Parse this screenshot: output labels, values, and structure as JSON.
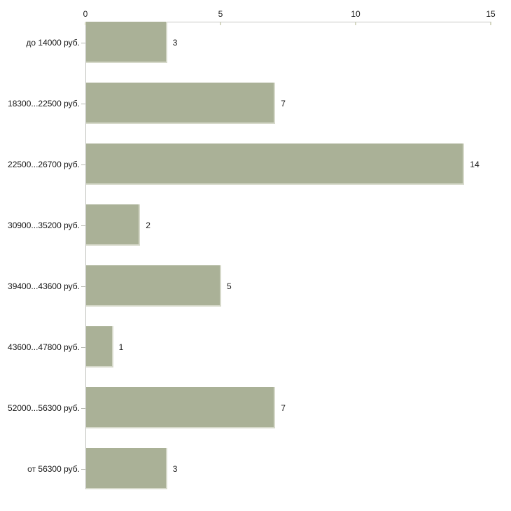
{
  "chart_data": {
    "type": "bar",
    "orientation": "horizontal",
    "title": "",
    "xlabel": "",
    "ylabel": "",
    "categories": [
      "до 14000 руб.",
      "18300...22500 руб.",
      "22500...26700 руб.",
      "30900...35200 руб.",
      "39400...43600 руб.",
      "43600...47800 руб.",
      "52000...56300 руб.",
      "от 56300 руб."
    ],
    "values": [
      3,
      7,
      14,
      2,
      5,
      1,
      7,
      3
    ],
    "value_labels": [
      "3",
      "7",
      "14",
      "2",
      "5",
      "1",
      "7",
      "3"
    ],
    "xlim": [
      0,
      15
    ],
    "x_ticks": [
      0,
      5,
      10,
      15
    ],
    "x_tick_labels": [
      "0",
      "5",
      "10",
      "15"
    ],
    "axis_position": "top",
    "grid": false,
    "legend": false,
    "bar_color": "#aab197",
    "bar_edge_color": "#d6d9ca",
    "axis_line_color": "#c6c7c3",
    "tick_mark_color": "#d6d8c2",
    "text_color": "#1a1a1a",
    "background_color": "#ffffff"
  }
}
